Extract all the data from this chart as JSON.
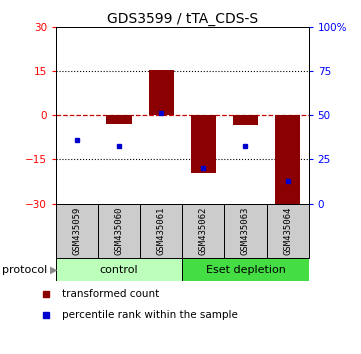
{
  "title": "GDS3599 / tTA_CDS-S",
  "samples": [
    "GSM435059",
    "GSM435060",
    "GSM435061",
    "GSM435062",
    "GSM435063",
    "GSM435064"
  ],
  "red_bars": [
    0,
    -3.0,
    15.2,
    -19.5,
    -3.5,
    -30.5
  ],
  "blue_dots_y": [
    -8.5,
    -10.5,
    0.8,
    -17.8,
    -10.5,
    -22.5
  ],
  "ylim_left": [
    -30,
    30
  ],
  "ylim_right": [
    0,
    100
  ],
  "yticks_left": [
    -30,
    -15,
    0,
    15,
    30
  ],
  "yticks_right": [
    0,
    25,
    50,
    75,
    100
  ],
  "bar_color": "#8B0000",
  "dot_color": "#0000CC",
  "dashed_line_color": "#CC0000",
  "title_fontsize": 10,
  "tick_fontsize": 7.5,
  "sample_fontsize": 6.5,
  "proto_fontsize": 8,
  "legend_fontsize": 7.5,
  "protocol_label": "protocol",
  "legend_red": "transformed count",
  "legend_blue": "percentile rank within the sample",
  "bar_width": 0.6,
  "control_color": "#bbffbb",
  "eset_color": "#44dd44",
  "sample_box_color": "#cccccc"
}
